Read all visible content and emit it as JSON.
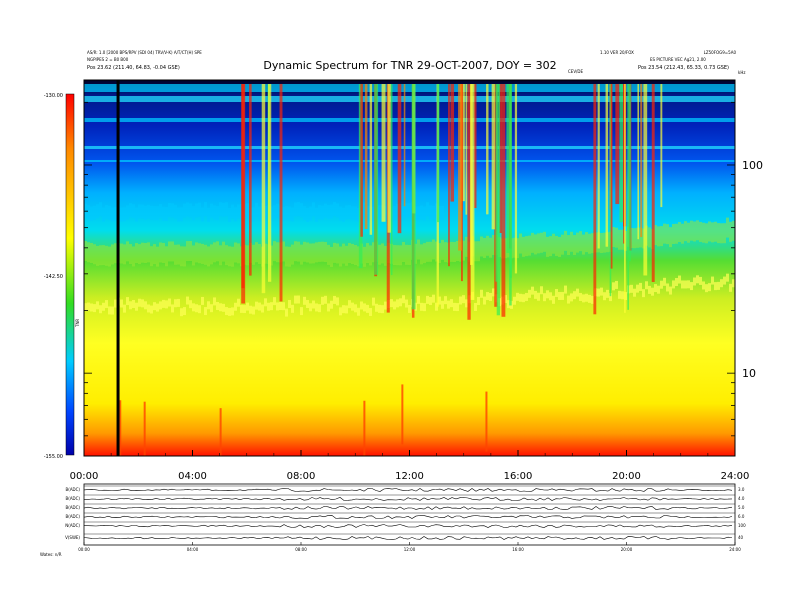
{
  "header": {
    "title": "Dynamic Spectrum for TNR 29-OCT-2007, DOY = 302",
    "left_line1": "AS/R: 1.0 [2000 BPS/RPV (SDI 04) TRV/V-K)  A/T/CT(H) SPE",
    "left_line2": "NGPIPES 2 = B0 B00",
    "left_line3": "Pos    23.62 (211.40, 64.83, -0.04 GSE)",
    "right_line1": "1.10 VER 20/FOX",
    "right_line2": "LZ50FOG9=5A0",
    "right_line3": "ES PICTURE VEC Ag21, 2.00",
    "right_line4": "Pos    23.54 (212.43, 65.33, 0.73 GSE)",
    "center_small": "CEV/DE",
    "khz_label": "kHz"
  },
  "chart_data": {
    "type": "heatmap",
    "title": "Dynamic Spectrum for TNR 29-OCT-2007, DOY = 302",
    "xlabel": "",
    "ylabel": "",
    "x_axis": {
      "range_hours": [
        0,
        24
      ],
      "tick_labels": [
        "00:00",
        "04:00",
        "08:00",
        "12:00",
        "16:00",
        "20:00",
        "24:00"
      ]
    },
    "y_axis": {
      "scale": "log",
      "unit": "kHz",
      "range_khz": [
        4,
        256
      ],
      "tick_labels": [
        "100",
        "10"
      ]
    },
    "colorbar": {
      "label": "TNR",
      "range": [
        -155.0,
        -130.0
      ],
      "tick_labels": [
        "-130.00",
        "-142.50",
        "-155.00"
      ],
      "colors": [
        "#0000aa",
        "#0044ff",
        "#00ccff",
        "#33dd22",
        "#ffff00",
        "#ff8800",
        "#ff0000"
      ]
    },
    "features": {
      "data_gap_hour": 1.2,
      "bursts_hours": [
        6.5,
        10.8,
        11.6,
        13.5,
        14.8,
        15.6,
        19.5,
        20.6
      ]
    }
  },
  "bottom_panels": {
    "rows": [
      {
        "left": "B(ADC)",
        "right": "3.0"
      },
      {
        "left": "B(ADC)",
        "right": "4.0"
      },
      {
        "left": "B(ADC)",
        "right": "5.0"
      },
      {
        "left": "B(ADC)",
        "right": "6.0"
      },
      {
        "left": "N(ADC)",
        "right": "100"
      },
      {
        "left": "V(SWE)",
        "right": "40"
      }
    ],
    "x_tick_labels": [
      "00:00",
      "04:00",
      "08:00",
      "12:00",
      "16:00",
      "20:00",
      "24:00"
    ],
    "footer_left": "Wates:  n/R"
  }
}
